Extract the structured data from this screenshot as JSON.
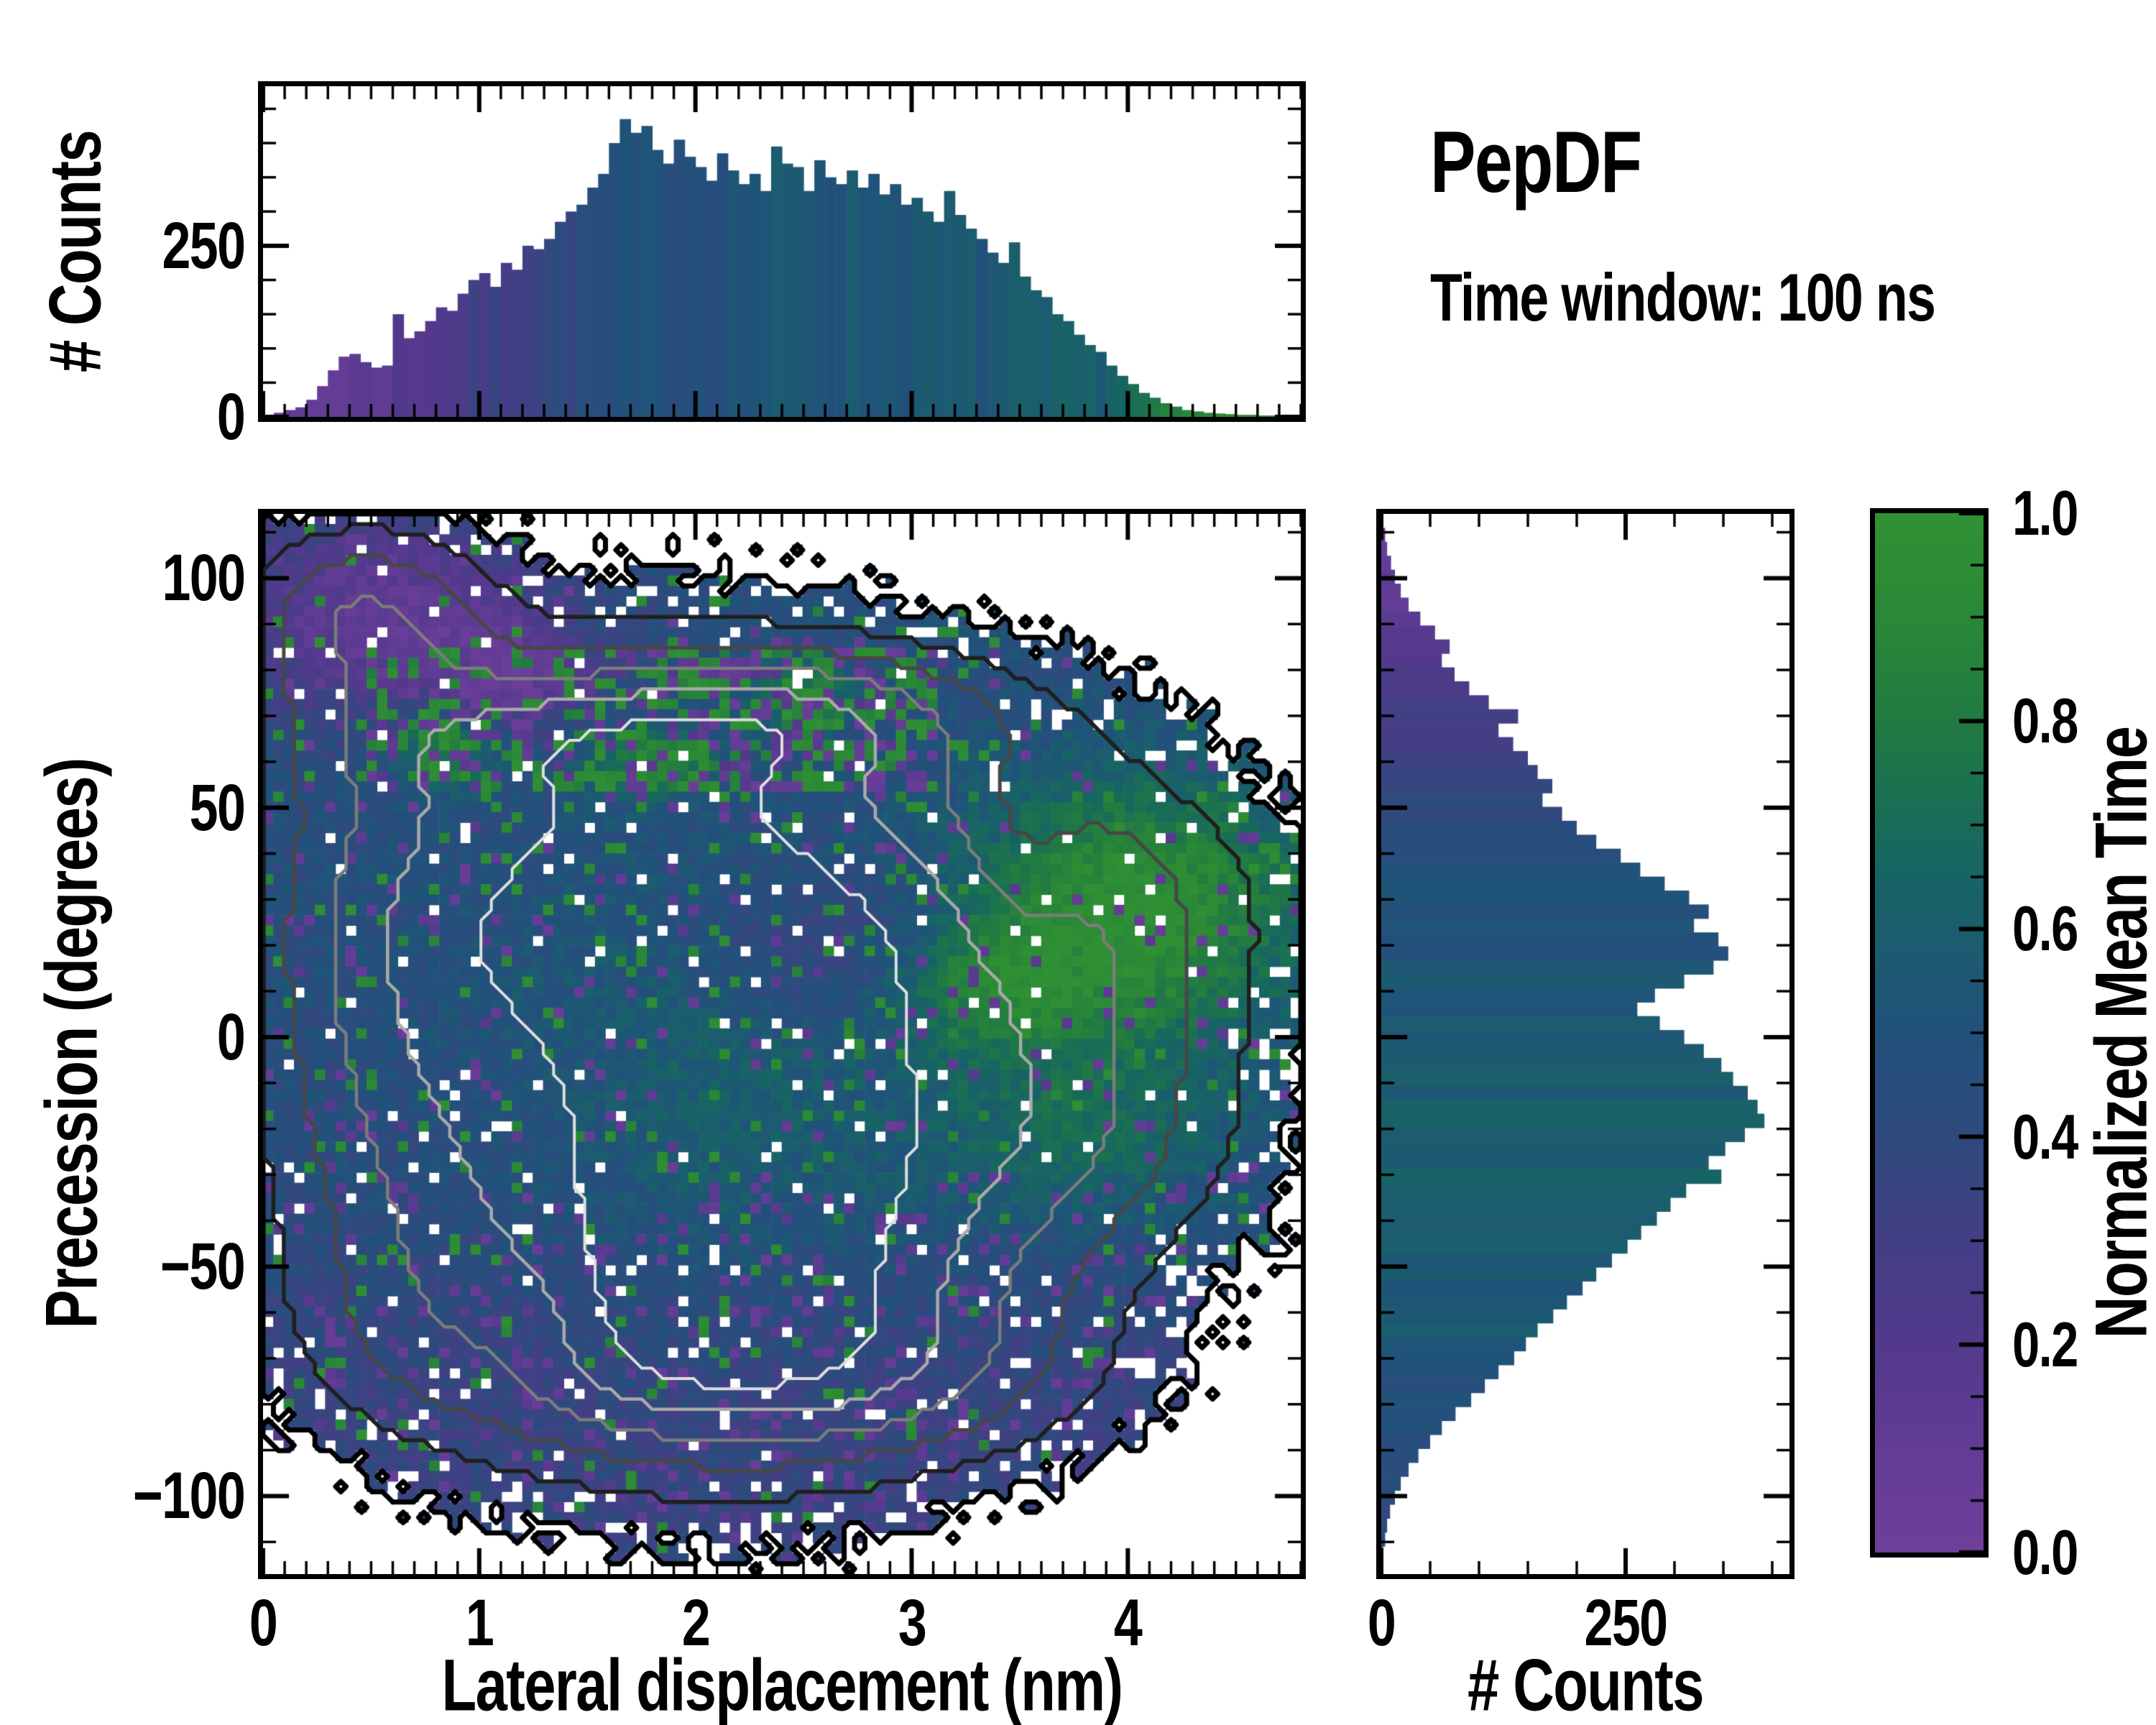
{
  "suptitle": {
    "title": "PepDF",
    "subtitle": "Time window: 100 ns"
  },
  "colors": {
    "background": "#ffffff",
    "frame": "#000000",
    "colormap_stops": [
      [
        0.0,
        "#6e3f9a"
      ],
      [
        0.1,
        "#623c95"
      ],
      [
        0.2,
        "#53398c"
      ],
      [
        0.3,
        "#433f85"
      ],
      [
        0.4,
        "#2f4a7d"
      ],
      [
        0.5,
        "#21517b"
      ],
      [
        0.58,
        "#1c5b70"
      ],
      [
        0.65,
        "#176464"
      ],
      [
        0.72,
        "#1a6e53"
      ],
      [
        0.8,
        "#217a42"
      ],
      [
        0.9,
        "#2a8836"
      ],
      [
        1.0,
        "#309133"
      ]
    ]
  },
  "chart_data": [
    {
      "id": "top_marginal_histogram",
      "type": "bar",
      "ylabel": "# Counts",
      "xlim": [
        0,
        4.8
      ],
      "ylim": [
        0,
        483
      ],
      "bin_start": 0,
      "bin_width": 0.05,
      "y_ticks": [
        {
          "value": 0,
          "label": "0"
        },
        {
          "value": 250,
          "label": "250"
        }
      ],
      "y_minor_step": 50,
      "values": [
        3,
        6,
        10,
        14,
        25,
        45,
        68,
        88,
        92,
        80,
        72,
        75,
        150,
        115,
        125,
        140,
        160,
        155,
        180,
        200,
        210,
        190,
        225,
        215,
        250,
        245,
        260,
        285,
        300,
        310,
        335,
        355,
        400,
        435,
        415,
        425,
        390,
        370,
        405,
        380,
        365,
        345,
        385,
        360,
        340,
        355,
        330,
        395,
        370,
        365,
        330,
        375,
        350,
        340,
        360,
        335,
        355,
        325,
        340,
        310,
        320,
        300,
        285,
        330,
        295,
        275,
        260,
        240,
        225,
        255,
        205,
        185,
        175,
        150,
        140,
        120,
        105,
        95,
        75,
        60,
        48,
        35,
        28,
        20,
        15,
        10,
        8,
        6,
        5,
        4,
        3,
        3,
        2,
        2,
        2,
        1
      ],
      "bar_color_anchors": [
        [
          0,
          0.05
        ],
        [
          0.4,
          0.12
        ],
        [
          0.8,
          0.22
        ],
        [
          1.2,
          0.35
        ],
        [
          1.6,
          0.45
        ],
        [
          2.0,
          0.5
        ],
        [
          2.4,
          0.54
        ],
        [
          2.8,
          0.55
        ],
        [
          3.2,
          0.54
        ],
        [
          3.6,
          0.56
        ],
        [
          3.9,
          0.62
        ],
        [
          4.15,
          0.78
        ],
        [
          4.4,
          0.9
        ],
        [
          4.8,
          0.97
        ]
      ],
      "bar_color_noise": 0.06
    },
    {
      "id": "joint_heatmap",
      "type": "heatmap",
      "xlabel": "Lateral displacement (nm)",
      "ylabel": "Precession (degrees)",
      "xlim": [
        0,
        4.8
      ],
      "ylim": [
        -117,
        114
      ],
      "x_ticks": [
        {
          "value": 0,
          "label": "0"
        },
        {
          "value": 1,
          "label": "1"
        },
        {
          "value": 2,
          "label": "2"
        },
        {
          "value": 3,
          "label": "3"
        },
        {
          "value": 4,
          "label": "4"
        }
      ],
      "x_minor_step": 0.1,
      "y_ticks": [
        {
          "value": 100,
          "label": "100"
        },
        {
          "value": 50,
          "label": "50"
        },
        {
          "value": 0,
          "label": "0"
        },
        {
          "value": -50,
          "label": "−50"
        },
        {
          "value": -100,
          "label": "−100"
        }
      ],
      "y_minor_step": 10,
      "grid": {
        "nx": 100,
        "ny": 103
      },
      "representation": "procedural-approximation",
      "density_blobs": [
        {
          "cx": 2.15,
          "cy": -5,
          "sx": 0.95,
          "sy": 48,
          "w": 1.0
        },
        {
          "cx": 1.6,
          "cy": 38,
          "sx": 0.95,
          "sy": 26,
          "w": 0.45
        },
        {
          "cx": 2.3,
          "cy": -52,
          "sx": 1.05,
          "sy": 26,
          "w": 0.45
        },
        {
          "cx": 0.62,
          "cy": 5,
          "sx": 0.5,
          "sy": 45,
          "w": 0.4
        },
        {
          "cx": 0.45,
          "cy": 93,
          "sx": 0.42,
          "sy": 14,
          "w": 0.5
        },
        {
          "cx": 1.55,
          "cy": 66,
          "sx": 1.05,
          "sy": 12,
          "w": 0.38
        },
        {
          "cx": 2.6,
          "cy": 72,
          "sx": 0.7,
          "sy": 10,
          "w": 0.25
        },
        {
          "cx": 3.75,
          "cy": 28,
          "sx": 0.72,
          "sy": 24,
          "w": 0.42
        },
        {
          "cx": 3.75,
          "cy": -18,
          "sx": 0.62,
          "sy": 20,
          "w": 0.32
        },
        {
          "cx": 1.6,
          "cy": -68,
          "sx": 0.85,
          "sy": 16,
          "w": 0.35
        },
        {
          "cx": 2.9,
          "cy": -75,
          "sx": 0.7,
          "sy": 12,
          "w": 0.22
        },
        {
          "cx": 3.5,
          "cy": 38,
          "sx": 0.22,
          "sy": 16,
          "w": -0.2
        },
        {
          "cx": 1.25,
          "cy": -62,
          "sx": 0.3,
          "sy": 12,
          "w": -0.22
        }
      ],
      "occupancy": {
        "threshold": 0.12,
        "noise": 0.1,
        "hole_base": 0.035,
        "hole_edge": 0.22,
        "edge_band": 0.2
      },
      "value_field": {
        "base": 0.46,
        "boosts": [
          {
            "cx": 2.0,
            "cy": -8,
            "sx": 0.8,
            "sy": 30,
            "amp": 0.16
          },
          {
            "cx": 4.05,
            "cy": 28,
            "sx": 0.55,
            "sy": 20,
            "amp": 0.52
          },
          {
            "cx": 3.35,
            "cy": 12,
            "sx": 0.35,
            "sy": 10,
            "amp": 0.3
          },
          {
            "cx": 3.8,
            "cy": -20,
            "sx": 0.5,
            "sy": 15,
            "amp": 0.2
          },
          {
            "cx": 0.85,
            "cy": 63,
            "sx": 0.18,
            "sy": 6,
            "amp": 0.42
          },
          {
            "cx": 1.8,
            "cy": 60,
            "sx": 0.2,
            "sy": 5,
            "amp": 0.4
          },
          {
            "cx": 2.5,
            "cy": 74,
            "sx": 0.15,
            "sy": 5,
            "amp": 0.4
          },
          {
            "cx": 0.55,
            "cy": 92,
            "sx": 0.55,
            "sy": 16,
            "amp": -0.36
          },
          {
            "cx": 1.15,
            "cy": 78,
            "sx": 0.25,
            "sy": 8,
            "amp": -0.3
          },
          {
            "cx": 2.65,
            "cy": 18,
            "sx": 0.45,
            "sy": 12,
            "amp": -0.2
          },
          {
            "cx": 1.1,
            "cy": -20,
            "sx": 0.6,
            "sy": 25,
            "amp": -0.06
          }
        ],
        "bottom_fade": {
          "start": -35,
          "range": 40,
          "amp": -0.1
        },
        "band": {
          "x": [
            0.5,
            3.1
          ],
          "y": [
            54,
            84
          ],
          "p_green": 0.3,
          "p_purple": 0.26,
          "green": 0.9,
          "purple": 0.12
        },
        "noise": 0.16,
        "speckle": {
          "green_p": 0.05,
          "purple_p": 0.05,
          "purple_extra_below": -30,
          "purple_extra_p": 0.05,
          "green_val": [
            0.85,
            0.98
          ],
          "purple_val": [
            0.05,
            0.18
          ]
        }
      },
      "contours": {
        "boundary": {
          "level": 0.12,
          "color": "#000000",
          "width": 7
        },
        "levels": [
          {
            "level": 0.26,
            "color": "#1f1f1f",
            "width": 5.5
          },
          {
            "level": 0.42,
            "color": "#474747",
            "width": 5
          },
          {
            "level": 0.6,
            "color": "#7c7c7c",
            "width": 4.5
          },
          {
            "level": 0.8,
            "color": "#a9a9a9",
            "width": 4.5
          },
          {
            "level": 1.0,
            "color": "#dedede",
            "width": 4
          }
        ]
      }
    },
    {
      "id": "right_marginal_histogram",
      "type": "bar",
      "orientation": "horizontal",
      "xlabel": "# Counts",
      "xlim": [
        0,
        418
      ],
      "ylim": [
        -117,
        114
      ],
      "bin_start": 114,
      "bin_width": 3.04,
      "x_ticks": [
        {
          "value": 0,
          "label": "0"
        },
        {
          "value": 250,
          "label": "250"
        }
      ],
      "x_minor_step": 50,
      "values": [
        2,
        4,
        6,
        10,
        14,
        20,
        28,
        40,
        55,
        70,
        62,
        75,
        90,
        110,
        140,
        120,
        135,
        150,
        160,
        175,
        165,
        185,
        200,
        220,
        245,
        265,
        290,
        315,
        335,
        320,
        345,
        355,
        340,
        310,
        280,
        262,
        285,
        310,
        330,
        348,
        360,
        375,
        385,
        392,
        372,
        352,
        335,
        348,
        312,
        296,
        282,
        266,
        252,
        236,
        220,
        206,
        190,
        176,
        160,
        148,
        136,
        120,
        106,
        92,
        76,
        62,
        50,
        38,
        28,
        20,
        14,
        9,
        6,
        4,
        2,
        1
      ],
      "bar_color_anchors": [
        [
          114,
          0.04
        ],
        [
          95,
          0.12
        ],
        [
          80,
          0.22
        ],
        [
          65,
          0.32
        ],
        [
          50,
          0.42
        ],
        [
          35,
          0.48
        ],
        [
          20,
          0.52
        ],
        [
          5,
          0.55
        ],
        [
          -10,
          0.58
        ],
        [
          -25,
          0.62
        ],
        [
          -40,
          0.6
        ],
        [
          -55,
          0.56
        ],
        [
          -70,
          0.52
        ],
        [
          -85,
          0.47
        ],
        [
          -100,
          0.43
        ],
        [
          -117,
          0.4
        ]
      ],
      "bar_color_noise": 0.05
    },
    {
      "id": "colorbar",
      "type": "colorbar",
      "label": "Normalized Mean Time",
      "range": [
        0,
        1
      ],
      "ticks": [
        {
          "value": 1.0,
          "label": "1.0"
        },
        {
          "value": 0.8,
          "label": "0.8"
        },
        {
          "value": 0.6,
          "label": "0.6"
        },
        {
          "value": 0.4,
          "label": "0.4"
        },
        {
          "value": 0.2,
          "label": "0.2"
        },
        {
          "value": 0.0,
          "label": "0.0"
        }
      ],
      "minor_step": 0.05
    }
  ]
}
